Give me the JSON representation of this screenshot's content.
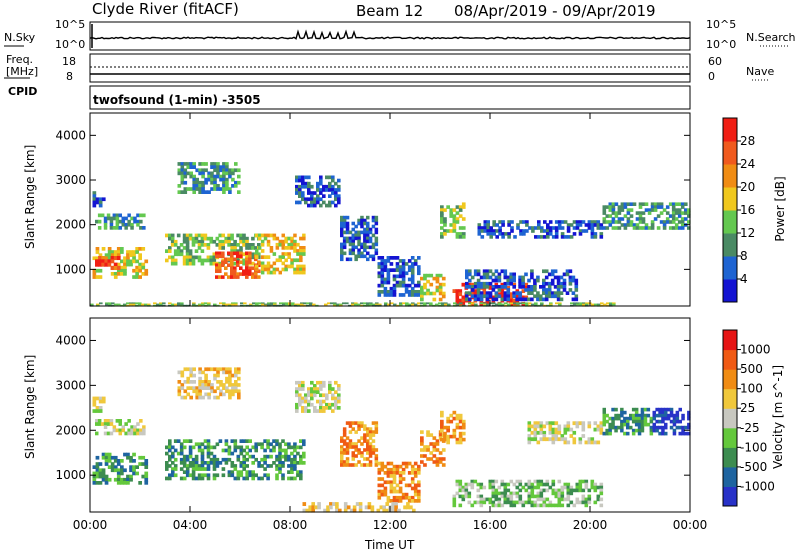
{
  "header": {
    "station": "Clyde River (fitACF)",
    "beam": "Beam 12",
    "dates": "08/Apr/2019 - 09/Apr/2019"
  },
  "top_panels": {
    "nsky_label": "N.Sky",
    "nsearch_label": "N.Search",
    "nsky_ticks": [
      "10^5",
      "10^0"
    ],
    "nsearch_ticks": [
      "10^5",
      "10^0"
    ],
    "freq_label": "Freq.",
    "freq_unit": "[MHz]",
    "freq_ticks": [
      "18",
      "8"
    ],
    "nave_ticks": [
      "60",
      "0"
    ],
    "nave_label": "Nave",
    "cpid_label": "CPID",
    "cpid_text": "twofsound (1-min) -3505"
  },
  "chart_data": [
    {
      "type": "heatmap",
      "title": "",
      "ylabel": "Slant Range [km]",
      "xlabel": "",
      "x_ticks": [
        "00:00",
        "04:00",
        "08:00",
        "12:00",
        "16:00",
        "20:00",
        "00:00"
      ],
      "y_ticks": [
        "1000",
        "2000",
        "3000",
        "4000"
      ],
      "ylim": [
        180,
        4500
      ],
      "xlim_hours": [
        0,
        24
      ],
      "colorbar": {
        "label": "Power [dB]",
        "ticks": [
          "4",
          "8",
          "12",
          "16",
          "20",
          "24",
          "28"
        ],
        "colors": [
          "#1414d2",
          "#1e64d2",
          "#4a8a64",
          "#64c850",
          "#f0c81e",
          "#f08c14",
          "#f05a1e",
          "#f01e14"
        ]
      },
      "regions": [
        {
          "t0": 0.1,
          "t1": 2.3,
          "r0": 800,
          "r1": 1500,
          "level": 4
        },
        {
          "t0": 0.2,
          "t1": 1.2,
          "r0": 1000,
          "r1": 1300,
          "level": 6
        },
        {
          "t0": 0.2,
          "t1": 2.2,
          "r0": 1900,
          "r1": 2250,
          "level": 2
        },
        {
          "t0": 0.1,
          "t1": 0.6,
          "r0": 2400,
          "r1": 2750,
          "level": 1
        },
        {
          "t0": 3.0,
          "t1": 6.8,
          "r0": 1100,
          "r1": 1800,
          "level": 3
        },
        {
          "t0": 5.0,
          "t1": 6.8,
          "r0": 800,
          "r1": 1400,
          "level": 6
        },
        {
          "t0": 6.6,
          "t1": 8.6,
          "r0": 900,
          "r1": 1800,
          "level": 4
        },
        {
          "t0": 3.5,
          "t1": 6.0,
          "r0": 2700,
          "r1": 3400,
          "level": 2
        },
        {
          "t0": 8.2,
          "t1": 10.0,
          "r0": 2400,
          "r1": 3100,
          "level": 1
        },
        {
          "t0": 10.0,
          "t1": 11.5,
          "r0": 1200,
          "r1": 2200,
          "level": 1
        },
        {
          "t0": 11.5,
          "t1": 13.2,
          "r0": 400,
          "r1": 1300,
          "level": 1
        },
        {
          "t0": 13.2,
          "t1": 14.2,
          "r0": 300,
          "r1": 900,
          "level": 4
        },
        {
          "t0": 14.0,
          "t1": 15.0,
          "r0": 1700,
          "r1": 2500,
          "level": 3
        },
        {
          "t0": 14.5,
          "t1": 17.5,
          "r0": 200,
          "r1": 700,
          "level": 7
        },
        {
          "t0": 15.0,
          "t1": 19.5,
          "r0": 300,
          "r1": 1000,
          "level": 1
        },
        {
          "t0": 15.5,
          "t1": 20.5,
          "r0": 1700,
          "r1": 2100,
          "level": 1
        },
        {
          "t0": 20.5,
          "t1": 24.0,
          "r0": 1900,
          "r1": 2500,
          "level": 2
        },
        {
          "t0": 0.0,
          "t1": 21.0,
          "r0": 180,
          "r1": 260,
          "level": 3
        }
      ]
    },
    {
      "type": "heatmap",
      "title": "",
      "ylabel": "Slant Range [km]",
      "xlabel": "Time UT",
      "x_ticks": [
        "00:00",
        "04:00",
        "08:00",
        "12:00",
        "16:00",
        "20:00",
        "00:00"
      ],
      "y_ticks": [
        "1000",
        "2000",
        "3000",
        "4000"
      ],
      "ylim": [
        180,
        4500
      ],
      "xlim_hours": [
        0,
        24
      ],
      "colorbar": {
        "label": "Velocity [m s^-1]",
        "ticks": [
          "1000",
          "500",
          "100",
          "25",
          "-25",
          "-100",
          "-500",
          "-1000"
        ],
        "colors": [
          "#2832c8",
          "#1e64a0",
          "#3c8c50",
          "#64c83c",
          "#c8c8c0",
          "#f0c83c",
          "#f08c14",
          "#f05a14",
          "#e61414"
        ]
      },
      "regions": [
        {
          "t0": 0.1,
          "t1": 2.3,
          "r0": 800,
          "r1": 1500,
          "level": 2
        },
        {
          "t0": 0.2,
          "t1": 2.2,
          "r0": 1900,
          "r1": 2250,
          "level": 4
        },
        {
          "t0": 0.1,
          "t1": 0.6,
          "r0": 2400,
          "r1": 2750,
          "level": 4
        },
        {
          "t0": 3.0,
          "t1": 8.6,
          "r0": 900,
          "r1": 1800,
          "level": 2
        },
        {
          "t0": 3.5,
          "t1": 6.0,
          "r0": 2700,
          "r1": 3400,
          "level": 5
        },
        {
          "t0": 8.2,
          "t1": 10.0,
          "r0": 2400,
          "r1": 3100,
          "level": 4
        },
        {
          "t0": 10.0,
          "t1": 11.5,
          "r0": 1200,
          "r1": 2200,
          "level": 6
        },
        {
          "t0": 11.5,
          "t1": 13.2,
          "r0": 400,
          "r1": 1300,
          "level": 6
        },
        {
          "t0": 13.2,
          "t1": 14.2,
          "r0": 1200,
          "r1": 2000,
          "level": 6
        },
        {
          "t0": 14.0,
          "t1": 15.0,
          "r0": 1700,
          "r1": 2500,
          "level": 6
        },
        {
          "t0": 14.5,
          "t1": 20.5,
          "r0": 300,
          "r1": 900,
          "level": 3
        },
        {
          "t0": 17.5,
          "t1": 20.5,
          "r0": 1700,
          "r1": 2200,
          "level": 4
        },
        {
          "t0": 20.5,
          "t1": 22.5,
          "r0": 1900,
          "r1": 2500,
          "level": 2
        },
        {
          "t0": 22.5,
          "t1": 24.0,
          "r0": 1900,
          "r1": 2500,
          "level": 0
        },
        {
          "t0": 8.5,
          "t1": 13.0,
          "r0": 180,
          "r1": 400,
          "level": 5
        }
      ]
    }
  ]
}
